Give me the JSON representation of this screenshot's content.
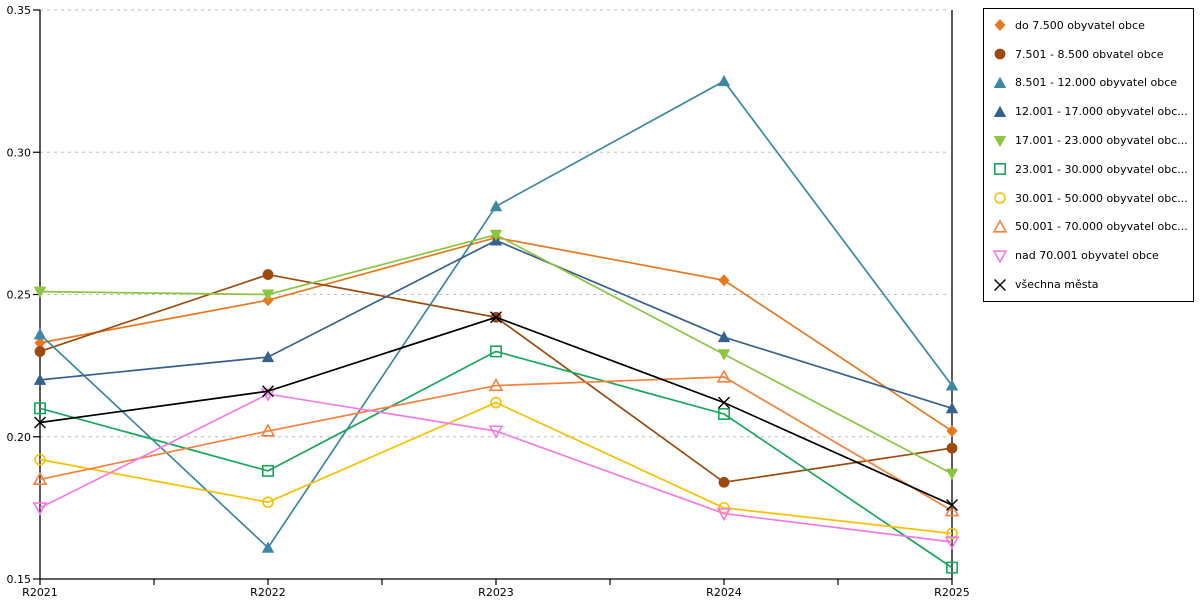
{
  "chart_data": {
    "type": "line",
    "title": "",
    "xlabel": "",
    "ylabel": "",
    "categories": [
      "R2021",
      "R2022",
      "R2023",
      "R2024",
      "R2025"
    ],
    "ylim": [
      0.15,
      0.35
    ],
    "yticks": [
      0.35,
      0.3,
      0.25,
      0.2,
      0.15
    ],
    "ytick_labels": [
      "0.35",
      "0.30",
      "0.25",
      "0.20",
      "0.15"
    ],
    "grid": "horizontal-dashed",
    "legend_position": "right-outside",
    "series": [
      {
        "name": "do 7.500 obyvatel obce",
        "marker": "diamond",
        "color": "#e8781e",
        "values": [
          0.233,
          0.248,
          0.27,
          0.255,
          0.202
        ]
      },
      {
        "name": "7.501 - 8.500 obvatel obce",
        "marker": "circle",
        "color": "#9c4a0e",
        "values": [
          0.23,
          0.257,
          0.242,
          0.184,
          0.196
        ]
      },
      {
        "name": "8.501 - 12.000 obyvatel obce",
        "marker": "triangle-up",
        "color": "#3c87a6",
        "values": [
          0.236,
          0.161,
          0.281,
          0.325,
          0.218
        ]
      },
      {
        "name": "12.001 - 17.000 obyvatel obc...",
        "marker": "triangle-up",
        "color": "#35618f",
        "values": [
          0.22,
          0.228,
          0.269,
          0.235,
          0.21
        ]
      },
      {
        "name": "17.001 - 23.000 obyvatel obc...",
        "marker": "triangle-down",
        "color": "#8cc63f",
        "values": [
          0.251,
          0.25,
          0.271,
          0.229,
          0.187
        ]
      },
      {
        "name": "23.001 - 30.000 obyvatel obc...",
        "marker": "square-open",
        "color": "#18a85c",
        "values": [
          0.21,
          0.188,
          0.23,
          0.208,
          0.154
        ]
      },
      {
        "name": "30.001 - 50.000 obyvatel obc...",
        "marker": "circle-open",
        "color": "#f7c103",
        "values": [
          0.192,
          0.177,
          0.212,
          0.175,
          0.166
        ]
      },
      {
        "name": "50.001 - 70.000 obyvatel obc...",
        "marker": "triangle-up-open",
        "color": "#f5813d",
        "values": [
          0.185,
          0.202,
          0.218,
          0.221,
          0.174
        ]
      },
      {
        "name": "nad 70.001 obyvatel obce",
        "marker": "triangle-down-open",
        "color": "#f579e3",
        "values": [
          0.175,
          0.215,
          0.202,
          0.173,
          0.163
        ]
      },
      {
        "name": "všechna města",
        "marker": "x",
        "color": "#000000",
        "values": [
          0.205,
          0.216,
          0.242,
          0.212,
          0.176
        ]
      }
    ],
    "axis_color": "#000000",
    "gridline_color": "#bdbdbd"
  }
}
